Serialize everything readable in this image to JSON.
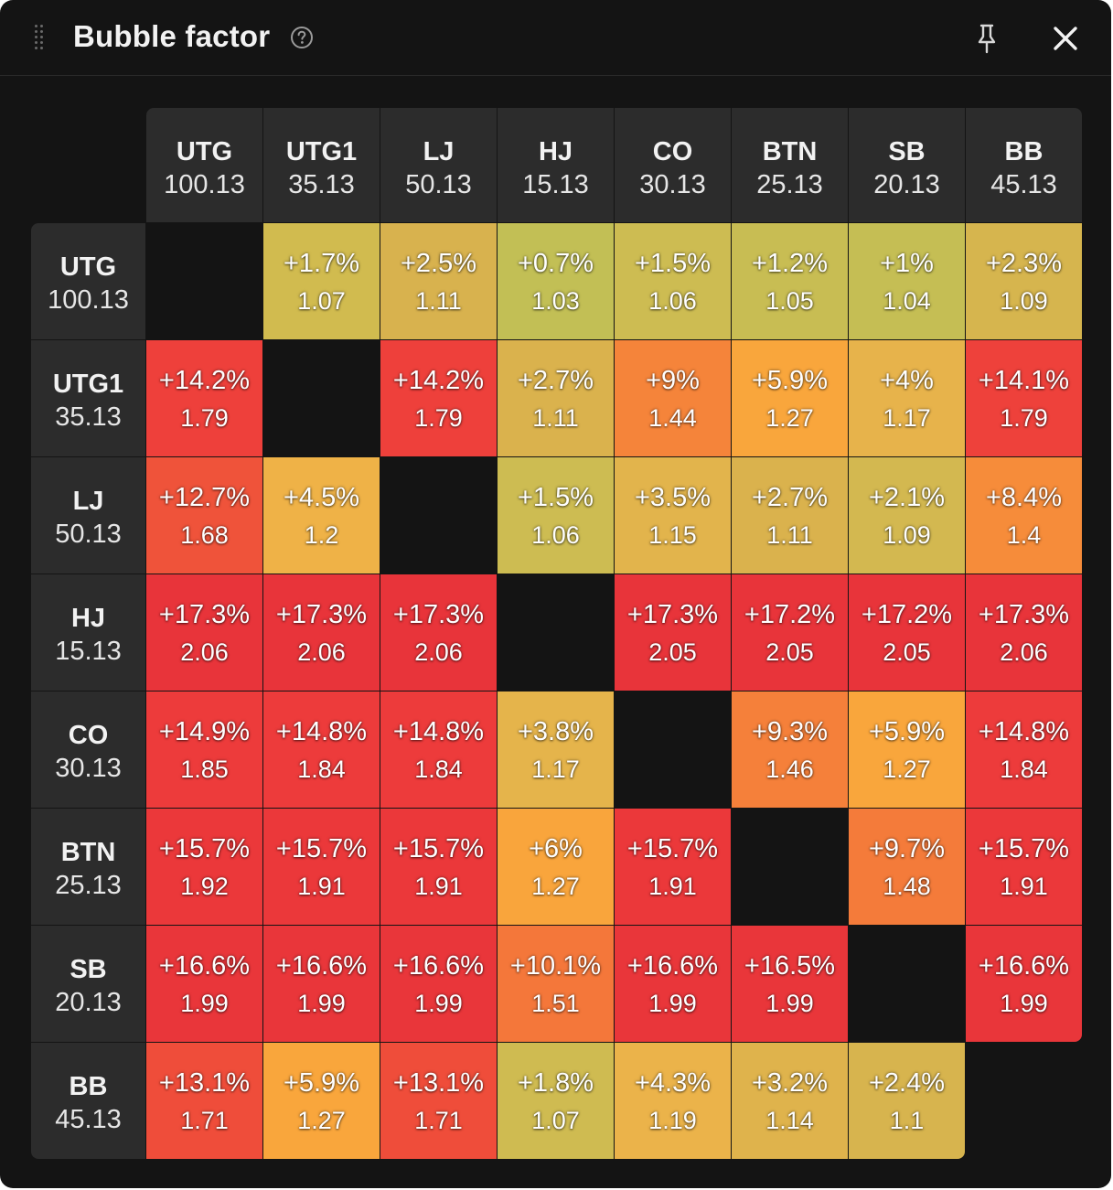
{
  "window": {
    "title": "Bubble factor",
    "icons": [
      "drag-handle-icon",
      "help-circle-icon",
      "pin-icon",
      "close-icon"
    ]
  },
  "matrix": {
    "columns": [
      {
        "name": "UTG",
        "stack": "100.13"
      },
      {
        "name": "UTG1",
        "stack": "35.13"
      },
      {
        "name": "LJ",
        "stack": "50.13"
      },
      {
        "name": "HJ",
        "stack": "15.13"
      },
      {
        "name": "CO",
        "stack": "30.13"
      },
      {
        "name": "BTN",
        "stack": "25.13"
      },
      {
        "name": "SB",
        "stack": "20.13"
      },
      {
        "name": "BB",
        "stack": "45.13"
      }
    ],
    "rows": [
      {
        "name": "UTG",
        "stack": "100.13",
        "cells": [
          null,
          {
            "pct": "+1.7%",
            "factor": "1.07",
            "color": "#d1bb4f"
          },
          {
            "pct": "+2.5%",
            "factor": "1.11",
            "color": "#d8b24e"
          },
          {
            "pct": "+0.7%",
            "factor": "1.03",
            "color": "#c2bf55"
          },
          {
            "pct": "+1.5%",
            "factor": "1.06",
            "color": "#cdbc52"
          },
          {
            "pct": "+1.2%",
            "factor": "1.05",
            "color": "#c8bd53"
          },
          {
            "pct": "+1%",
            "factor": "1.04",
            "color": "#c5be54"
          },
          {
            "pct": "+2.3%",
            "factor": "1.09",
            "color": "#d6b54e"
          }
        ]
      },
      {
        "name": "UTG1",
        "stack": "35.13",
        "cells": [
          {
            "pct": "+14.2%",
            "factor": "1.79",
            "color": "#ee403b"
          },
          null,
          {
            "pct": "+14.2%",
            "factor": "1.79",
            "color": "#ee403b"
          },
          {
            "pct": "+2.7%",
            "factor": "1.11",
            "color": "#dab24d"
          },
          {
            "pct": "+9%",
            "factor": "1.44",
            "color": "#f5843a"
          },
          {
            "pct": "+5.9%",
            "factor": "1.27",
            "color": "#f9a63c"
          },
          {
            "pct": "+4%",
            "factor": "1.17",
            "color": "#e7b34b"
          },
          {
            "pct": "+14.1%",
            "factor": "1.79",
            "color": "#ee413b"
          }
        ]
      },
      {
        "name": "LJ",
        "stack": "50.13",
        "cells": [
          {
            "pct": "+12.7%",
            "factor": "1.68",
            "color": "#ef533a"
          },
          {
            "pct": "+4.5%",
            "factor": "1.2",
            "color": "#efb247"
          },
          null,
          {
            "pct": "+1.5%",
            "factor": "1.06",
            "color": "#cdbc52"
          },
          {
            "pct": "+3.5%",
            "factor": "1.15",
            "color": "#e2b44c"
          },
          {
            "pct": "+2.7%",
            "factor": "1.11",
            "color": "#dab24d"
          },
          {
            "pct": "+2.1%",
            "factor": "1.09",
            "color": "#d3b850"
          },
          {
            "pct": "+8.4%",
            "factor": "1.4",
            "color": "#f68c3a"
          }
        ]
      },
      {
        "name": "HJ",
        "stack": "15.13",
        "cells": [
          {
            "pct": "+17.3%",
            "factor": "2.06",
            "color": "#e8343a"
          },
          {
            "pct": "+17.3%",
            "factor": "2.06",
            "color": "#e8343a"
          },
          {
            "pct": "+17.3%",
            "factor": "2.06",
            "color": "#e8343a"
          },
          null,
          {
            "pct": "+17.3%",
            "factor": "2.05",
            "color": "#e8343a"
          },
          {
            "pct": "+17.2%",
            "factor": "2.05",
            "color": "#e8343a"
          },
          {
            "pct": "+17.2%",
            "factor": "2.05",
            "color": "#e8343a"
          },
          {
            "pct": "+17.3%",
            "factor": "2.06",
            "color": "#e8343a"
          }
        ]
      },
      {
        "name": "CO",
        "stack": "30.13",
        "cells": [
          {
            "pct": "+14.9%",
            "factor": "1.85",
            "color": "#ed3b3b"
          },
          {
            "pct": "+14.8%",
            "factor": "1.84",
            "color": "#ed3b3b"
          },
          {
            "pct": "+14.8%",
            "factor": "1.84",
            "color": "#ed3b3b"
          },
          {
            "pct": "+3.8%",
            "factor": "1.17",
            "color": "#e5b44b"
          },
          null,
          {
            "pct": "+9.3%",
            "factor": "1.46",
            "color": "#f5803a"
          },
          {
            "pct": "+5.9%",
            "factor": "1.27",
            "color": "#f9a63c"
          },
          {
            "pct": "+14.8%",
            "factor": "1.84",
            "color": "#ed3b3b"
          }
        ]
      },
      {
        "name": "BTN",
        "stack": "25.13",
        "cells": [
          {
            "pct": "+15.7%",
            "factor": "1.92",
            "color": "#eb383a"
          },
          {
            "pct": "+15.7%",
            "factor": "1.91",
            "color": "#eb383a"
          },
          {
            "pct": "+15.7%",
            "factor": "1.91",
            "color": "#eb383a"
          },
          {
            "pct": "+6%",
            "factor": "1.27",
            "color": "#f9a53c"
          },
          {
            "pct": "+15.7%",
            "factor": "1.91",
            "color": "#eb383a"
          },
          null,
          {
            "pct": "+9.7%",
            "factor": "1.48",
            "color": "#f47b3a"
          },
          {
            "pct": "+15.7%",
            "factor": "1.91",
            "color": "#eb383a"
          }
        ]
      },
      {
        "name": "SB",
        "stack": "20.13",
        "cells": [
          {
            "pct": "+16.6%",
            "factor": "1.99",
            "color": "#e9363a"
          },
          {
            "pct": "+16.6%",
            "factor": "1.99",
            "color": "#e9363a"
          },
          {
            "pct": "+16.6%",
            "factor": "1.99",
            "color": "#e9363a"
          },
          {
            "pct": "+10.1%",
            "factor": "1.51",
            "color": "#f4773a"
          },
          {
            "pct": "+16.6%",
            "factor": "1.99",
            "color": "#e9363a"
          },
          {
            "pct": "+16.5%",
            "factor": "1.99",
            "color": "#e9363a"
          },
          null,
          {
            "pct": "+16.6%",
            "factor": "1.99",
            "color": "#e9363a"
          }
        ]
      },
      {
        "name": "BB",
        "stack": "45.13",
        "cells": [
          {
            "pct": "+13.1%",
            "factor": "1.71",
            "color": "#ef4d3a"
          },
          {
            "pct": "+5.9%",
            "factor": "1.27",
            "color": "#f9a63c"
          },
          {
            "pct": "+13.1%",
            "factor": "1.71",
            "color": "#ef4d3a"
          },
          {
            "pct": "+1.8%",
            "factor": "1.07",
            "color": "#cfbb51"
          },
          {
            "pct": "+4.3%",
            "factor": "1.19",
            "color": "#ebb34a"
          },
          {
            "pct": "+3.2%",
            "factor": "1.14",
            "color": "#dfb34c"
          },
          {
            "pct": "+2.4%",
            "factor": "1.1",
            "color": "#d7b44e"
          },
          null
        ]
      }
    ]
  }
}
